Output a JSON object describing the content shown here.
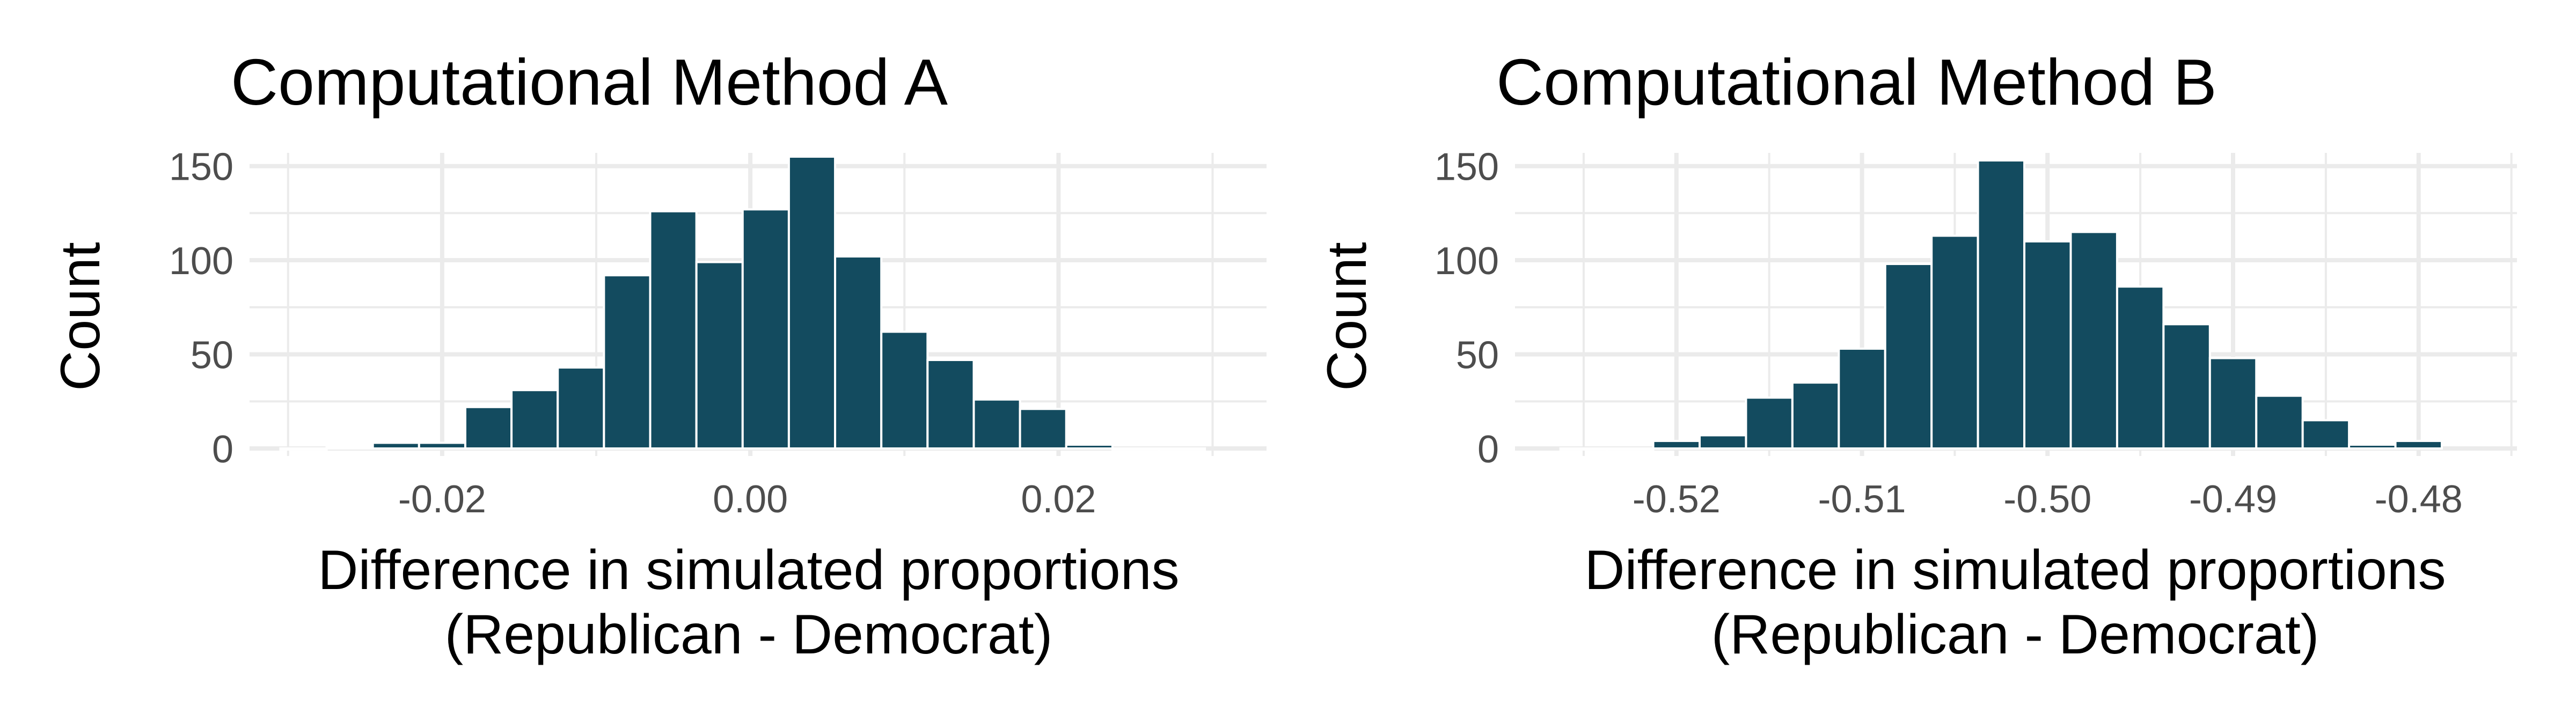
{
  "chart_data": [
    {
      "type": "bar",
      "title": "Computational Method A",
      "xlabel": [
        "Difference in simulated proportions",
        "(Republican - Democrat)"
      ],
      "ylabel": "Count",
      "xlim": [
        -0.0325,
        0.0335
      ],
      "ylim": [
        -4,
        157
      ],
      "x_ticks": [
        -0.02,
        0.0,
        0.02
      ],
      "x_tick_labels": [
        "-0.02",
        "0.00",
        "0.02"
      ],
      "y_ticks": [
        0,
        50,
        100,
        150
      ],
      "y_tick_labels": [
        "0",
        "50",
        "100",
        "150"
      ],
      "grid": true,
      "bin_width": 0.003,
      "bar_color": "#134b5f",
      "bins": [
        {
          "x": -0.029,
          "count": 0
        },
        {
          "x": -0.026,
          "count": 1
        },
        {
          "x": -0.023,
          "count": 3
        },
        {
          "x": -0.02,
          "count": 3
        },
        {
          "x": -0.017,
          "count": 22
        },
        {
          "x": -0.014,
          "count": 31
        },
        {
          "x": -0.011,
          "count": 43
        },
        {
          "x": -0.008,
          "count": 92
        },
        {
          "x": -0.005,
          "count": 126
        },
        {
          "x": -0.002,
          "count": 99
        },
        {
          "x": 0.001,
          "count": 127
        },
        {
          "x": 0.004,
          "count": 155
        },
        {
          "x": 0.007,
          "count": 102
        },
        {
          "x": 0.01,
          "count": 62
        },
        {
          "x": 0.013,
          "count": 47
        },
        {
          "x": 0.016,
          "count": 26
        },
        {
          "x": 0.019,
          "count": 21
        },
        {
          "x": 0.022,
          "count": 2
        },
        {
          "x": 0.025,
          "count": 0
        },
        {
          "x": 0.028,
          "count": 0
        }
      ]
    },
    {
      "type": "bar",
      "title": "Computational Method B",
      "xlabel": [
        "Difference in simulated proportions",
        "(Republican - Democrat)"
      ],
      "ylabel": "Count",
      "xlim": [
        -0.5287,
        -0.4747
      ],
      "ylim": [
        -4,
        157
      ],
      "x_ticks": [
        -0.52,
        -0.51,
        -0.5,
        -0.49,
        -0.48
      ],
      "x_tick_labels": [
        "-0.52",
        "-0.51",
        "-0.50",
        "-0.49",
        "-0.48"
      ],
      "y_ticks": [
        0,
        50,
        100,
        150
      ],
      "y_tick_labels": [
        "0",
        "50",
        "100",
        "150"
      ],
      "grid": true,
      "bin_width": 0.0025,
      "bar_color": "#134b5f",
      "bins": [
        {
          "x": -0.525,
          "count": 0
        },
        {
          "x": -0.5225,
          "count": 0
        },
        {
          "x": -0.52,
          "count": 4
        },
        {
          "x": -0.5175,
          "count": 7
        },
        {
          "x": -0.515,
          "count": 27
        },
        {
          "x": -0.5125,
          "count": 35
        },
        {
          "x": -0.51,
          "count": 53
        },
        {
          "x": -0.5075,
          "count": 98
        },
        {
          "x": -0.505,
          "count": 113
        },
        {
          "x": -0.5025,
          "count": 153
        },
        {
          "x": -0.5,
          "count": 110
        },
        {
          "x": -0.4975,
          "count": 115
        },
        {
          "x": -0.495,
          "count": 86
        },
        {
          "x": -0.4925,
          "count": 66
        },
        {
          "x": -0.49,
          "count": 48
        },
        {
          "x": -0.4875,
          "count": 28
        },
        {
          "x": -0.485,
          "count": 15
        },
        {
          "x": -0.4825,
          "count": 2
        },
        {
          "x": -0.48,
          "count": 4
        }
      ]
    }
  ]
}
